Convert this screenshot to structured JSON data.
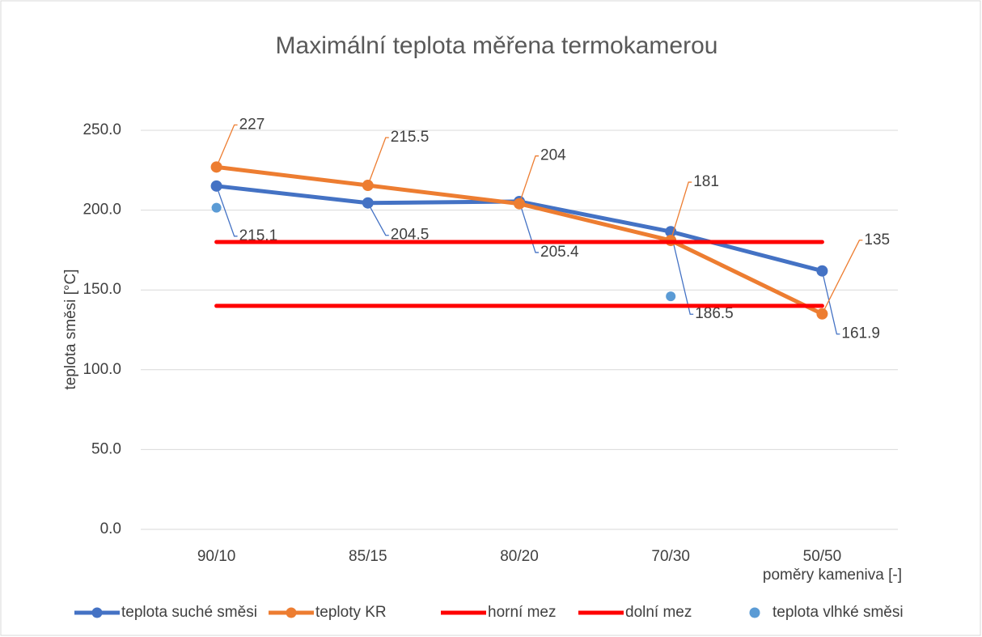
{
  "chart_data": {
    "type": "line",
    "title": "Maximální teplota měřena termokamerou",
    "x_label": "poměry kameniva [-]",
    "y_label": "teplota směsi [°C]",
    "categories": [
      "90/10",
      "85/15",
      "80/20",
      "70/30",
      "50/50"
    ],
    "series": [
      {
        "name": "teplota suché směsi",
        "color": "#4472c4",
        "values": [
          215.1,
          204.5,
          205.4,
          186.5,
          161.9
        ],
        "data_labels": true
      },
      {
        "name": "teploty KR",
        "color": "#ed7d31",
        "values": [
          227,
          215.5,
          204,
          181,
          135
        ],
        "data_labels": true
      },
      {
        "name": "horní mez",
        "color": "#ff0000",
        "values": [
          180,
          180,
          180,
          180,
          180
        ]
      },
      {
        "name": "dolní mez",
        "color": "#ff0000",
        "values": [
          140,
          140,
          140,
          140,
          140
        ]
      },
      {
        "name": "teplota vlhké směsi",
        "color": "#5b9bd5",
        "values": [
          201.5,
          null,
          null,
          146,
          null
        ],
        "markers_only": true
      }
    ],
    "ylim": [
      0,
      250
    ],
    "yticks": [
      {
        "value": 0,
        "label": "0.0"
      },
      {
        "value": 50,
        "label": "50.0"
      },
      {
        "value": 100,
        "label": "100.0"
      },
      {
        "value": 150,
        "label": "150.0"
      },
      {
        "value": 200,
        "label": "200.0"
      },
      {
        "value": 250,
        "label": "250.0"
      }
    ],
    "grid": true,
    "legend": "bottom"
  }
}
